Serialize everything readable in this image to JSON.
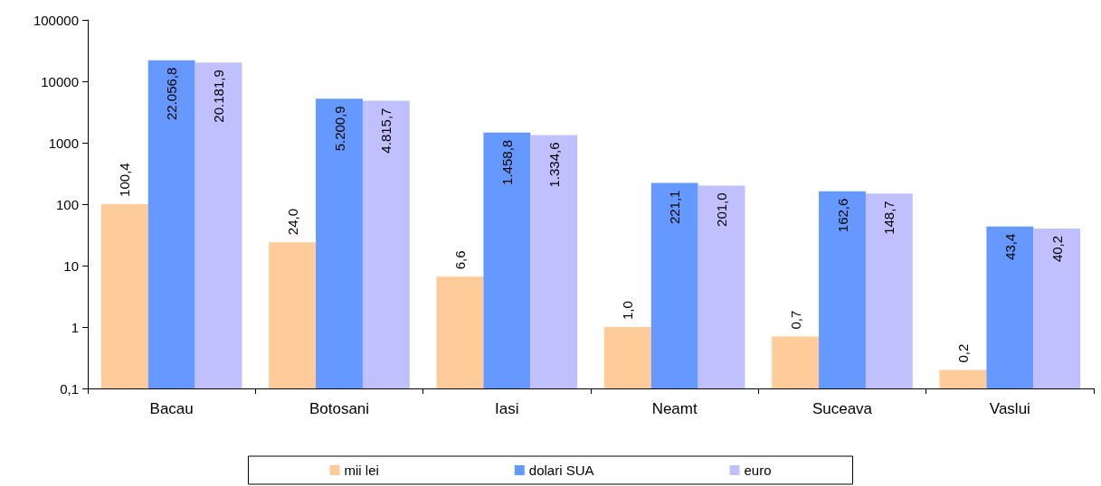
{
  "chart_data": {
    "type": "bar",
    "categories": [
      "Bacau",
      "Botosani",
      "Iasi",
      "Neamt",
      "Suceava",
      "Vaslui"
    ],
    "series": [
      {
        "name": "mii lei",
        "color": "#ffcc99",
        "values": [
          100.4,
          24.0,
          6.6,
          1.0,
          0.7,
          0.2
        ],
        "value_labels": [
          "100,4",
          "24,0",
          "6,6",
          "1,0",
          "0,7",
          "0,2"
        ]
      },
      {
        "name": "dolari SUA",
        "color": "#6699ff",
        "values": [
          22056.8,
          5200.9,
          1458.8,
          221.1,
          162.6,
          43.4
        ],
        "value_labels": [
          "22.056,8",
          "5.200,9",
          "1.458,8",
          "221,1",
          "162,6",
          "43,4"
        ]
      },
      {
        "name": "euro",
        "color": "#c0c0ff",
        "values": [
          20181.9,
          4815.7,
          1334.6,
          201.0,
          148.7,
          40.2
        ],
        "value_labels": [
          "20.181,9",
          "4.815,7",
          "1.334,6",
          "201,0",
          "148,7",
          "40,2"
        ]
      }
    ],
    "log": "y",
    "ylim": [
      0.1,
      100000
    ],
    "yticks": [
      {
        "value": 0.1,
        "label": "0,1"
      },
      1,
      10,
      100,
      1000,
      10000,
      100000
    ],
    "grid": false,
    "legend": "bottom"
  }
}
